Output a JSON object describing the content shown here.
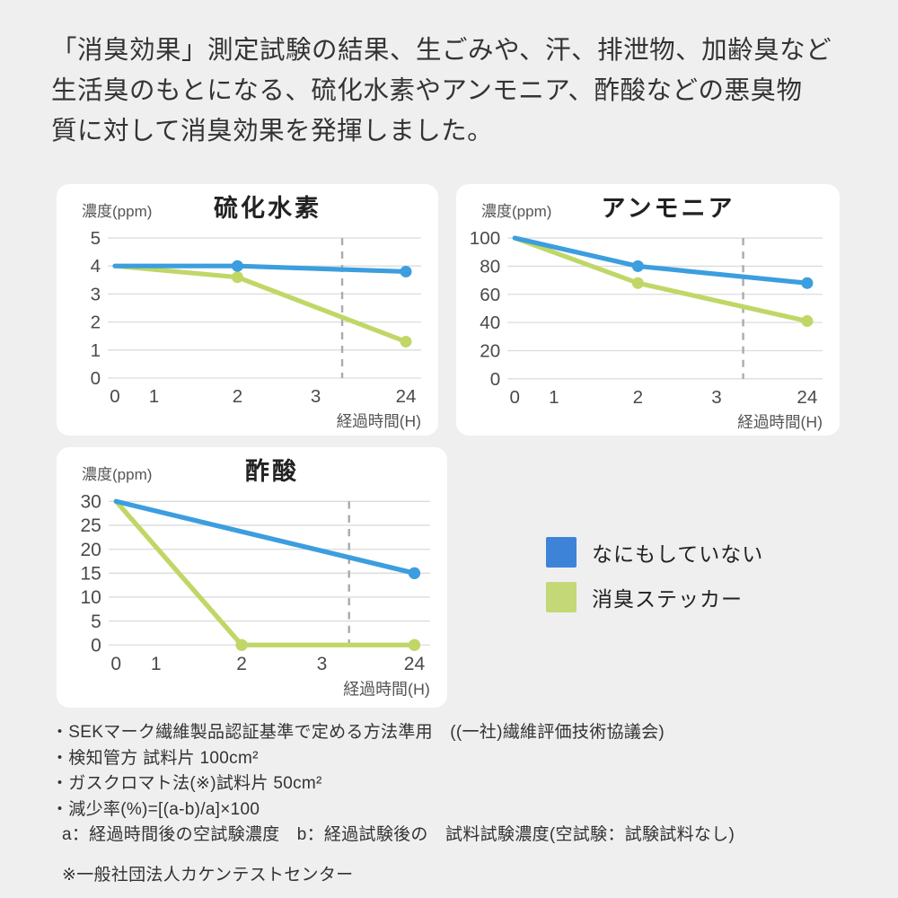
{
  "header": {
    "text": "「消臭効果」測定試験の結果、生ごみや、汗、排泄物、加齢臭など\n生活臭のもとになる、硫化水素やアンモニア、酢酸などの悪臭物\n質に対して消臭効果を発揮しました。"
  },
  "colors": {
    "background": "#efefef",
    "panel": "#ffffff",
    "line_blue": "#3c9edf",
    "line_green": "#c0d767",
    "legend_blue": "#3d84d9",
    "legend_green": "#c5d878",
    "grid": "#dcdcdc",
    "dash": "#ababab",
    "tick_text": "#4a4a4a",
    "axis_text": "#555555"
  },
  "chart_data": [
    {
      "type": "line",
      "title": "硫化水素",
      "y_axis_label": "濃度(ppm)",
      "x_axis_label": "経過時間(H)",
      "x_tick_labels": [
        "0",
        "1",
        "2",
        "3",
        "24"
      ],
      "y_tick_labels": [
        5,
        4,
        3,
        2,
        1,
        0
      ],
      "ylim": [
        0,
        5
      ],
      "x_unit": "H",
      "grid": "horizontal",
      "series": [
        {
          "name": "なにもしていない",
          "color": "blue",
          "points": [
            [
              0,
              4.0
            ],
            [
              2,
              4.0
            ],
            [
              24,
              3.8
            ]
          ],
          "marker_at": [
            2,
            24
          ]
        },
        {
          "name": "消臭ステッカー",
          "color": "green",
          "points": [
            [
              0,
              4.0
            ],
            [
              2,
              3.6
            ],
            [
              24,
              1.3
            ]
          ],
          "marker_at": [
            2,
            24
          ]
        }
      ],
      "layout": {
        "x_fractions": {
          "0": 0,
          "1": 0.134,
          "2": 0.421,
          "3": 0.69,
          "24": 1.0
        },
        "dash_fraction": 0.781
      }
    },
    {
      "type": "line",
      "title": "アンモニア",
      "y_axis_label": "濃度(ppm)",
      "x_axis_label": "経過時間(H)",
      "x_tick_labels": [
        "0",
        "1",
        "2",
        "3",
        "24"
      ],
      "y_tick_labels": [
        100,
        80,
        60,
        40,
        20,
        0
      ],
      "ylim": [
        0,
        100
      ],
      "x_unit": "H",
      "grid": "horizontal",
      "series": [
        {
          "name": "なにもしていない",
          "color": "blue",
          "points": [
            [
              0,
              100
            ],
            [
              2,
              80
            ],
            [
              24,
              68
            ]
          ],
          "marker_at": [
            2,
            24
          ]
        },
        {
          "name": "消臭ステッカー",
          "color": "green",
          "points": [
            [
              0,
              100
            ],
            [
              2,
              68
            ],
            [
              24,
              41
            ]
          ],
          "marker_at": [
            2,
            24
          ]
        }
      ],
      "layout": {
        "x_fractions": {
          "0": 0,
          "1": 0.134,
          "2": 0.421,
          "3": 0.69,
          "24": 1.0
        },
        "dash_fraction": 0.781
      }
    },
    {
      "type": "line",
      "title": "酢酸",
      "y_axis_label": "濃度(ppm)",
      "x_axis_label": "経過時間(H)",
      "x_tick_labels": [
        "0",
        "1",
        "2",
        "3",
        "24"
      ],
      "y_tick_labels": [
        30,
        25,
        20,
        15,
        10,
        5,
        0
      ],
      "ylim": [
        0,
        30
      ],
      "x_unit": "H",
      "grid": "horizontal",
      "series": [
        {
          "name": "なにもしていない",
          "color": "blue",
          "points": [
            [
              0,
              30
            ],
            [
              24,
              15
            ]
          ],
          "marker_at": [
            24
          ]
        },
        {
          "name": "消臭ステッカー",
          "color": "green",
          "points": [
            [
              0,
              30
            ],
            [
              2,
              0
            ],
            [
              24,
              0
            ]
          ],
          "marker_at": [
            2,
            24
          ]
        }
      ],
      "layout": {
        "x_fractions": {
          "0": 0,
          "1": 0.134,
          "2": 0.421,
          "3": 0.69,
          "24": 1.0
        },
        "dash_fraction": 0.781
      }
    }
  ],
  "legend": {
    "items": [
      {
        "label": "なにもしていない",
        "color": "#3d84d9"
      },
      {
        "label": "消臭ステッカー",
        "color": "#c5d878"
      }
    ]
  },
  "notes": [
    "・SEKマーク繊維製品認証基準で定める方法準用　((一社)繊維評価技術協議会)",
    "・検知管方 試料片 100cm²",
    "・ガスクロマト法(※)試料片 50cm²",
    "・減少率(%)=[(a-b)/a]×100",
    "a：経過時間後の空試験濃度　b：経過試験後の　試料試験濃度(空試験：試験試料なし)",
    "※一般社団法人カケンテストセンター"
  ]
}
